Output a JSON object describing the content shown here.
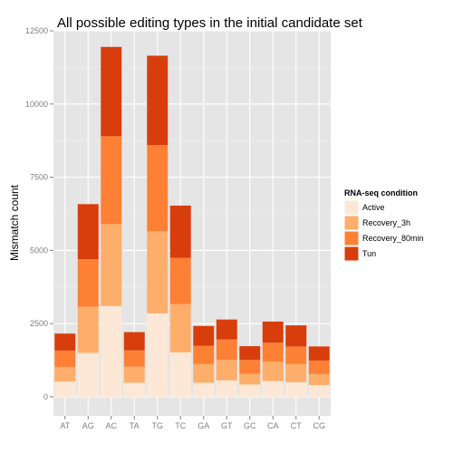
{
  "chart_data": {
    "type": "bar",
    "stacked": true,
    "title": "All possible editing types in the initial candidate set",
    "xlabel": "",
    "ylabel": "Mismatch count",
    "ylim": [
      -650,
      12500
    ],
    "yticks": [
      0,
      2500,
      5000,
      7500,
      10000,
      12500
    ],
    "yticklabels": [
      "0",
      "2500",
      "5000",
      "7500",
      "10000",
      "12500"
    ],
    "categories": [
      "AT",
      "AG",
      "AC",
      "TA",
      "TG",
      "TC",
      "GA",
      "GT",
      "GC",
      "CA",
      "CT",
      "CG"
    ],
    "series": [
      {
        "name": "Active",
        "color": "#fde8d7",
        "values": [
          520,
          1500,
          3100,
          480,
          2850,
          1520,
          480,
          560,
          420,
          540,
          500,
          400
        ]
      },
      {
        "name": "Recovery_3h",
        "color": "#fdae6b",
        "values": [
          500,
          1580,
          2800,
          550,
          2800,
          1650,
          640,
          700,
          370,
          660,
          620,
          380
        ]
      },
      {
        "name": "Recovery_80min",
        "color": "#fd8035",
        "values": [
          560,
          1620,
          3000,
          560,
          2950,
          1580,
          620,
          700,
          470,
          650,
          600,
          460
        ]
      },
      {
        "name": "Tun",
        "color": "#d83d0c",
        "values": [
          580,
          1880,
          3050,
          620,
          3050,
          1780,
          680,
          680,
          470,
          720,
          720,
          480
        ]
      }
    ],
    "legend": {
      "title": "RNA-seq condition",
      "position": "right"
    },
    "grid": true,
    "panel_background": "#e5e5e5",
    "grid_color": "#ffffff"
  }
}
